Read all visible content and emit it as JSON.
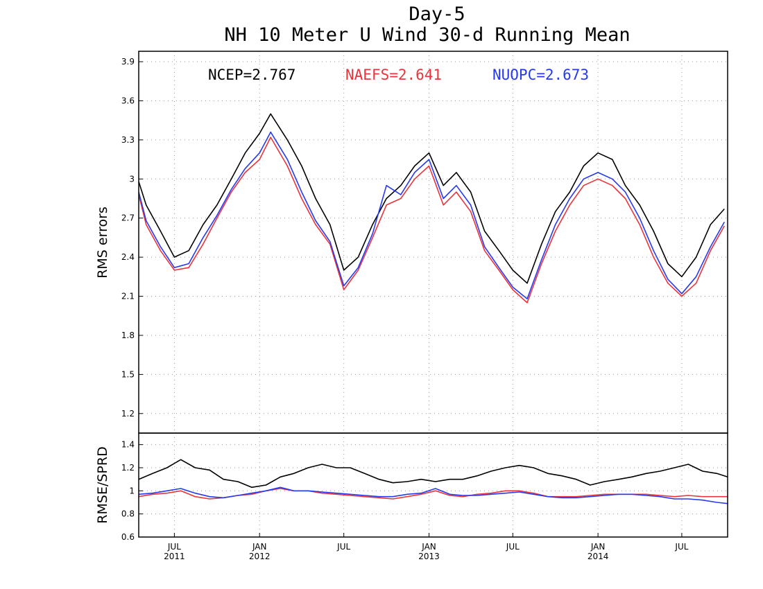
{
  "chart_data": [
    {
      "type": "line",
      "title_line1": "Day-5",
      "title_line2": "NH 10 Meter U Wind 30-d Running Mean",
      "ylabel": "RMS errors",
      "ylim": [
        1.05,
        3.98
      ],
      "yticks": [
        1.2,
        1.5,
        1.8,
        2.1,
        2.4,
        2.7,
        3.0,
        3.3,
        3.6,
        3.9
      ],
      "ytick_labels": [
        "1.2",
        "1.5",
        "1.8",
        "2.1",
        "2.4",
        "2.7",
        "3",
        "3.3",
        "3.6",
        "3.9"
      ],
      "grid": true,
      "legend": [
        {
          "text": "NCEP=2.767",
          "color": "#000000"
        },
        {
          "text": "NAEFS=2.641",
          "color": "#e8343a"
        },
        {
          "text": "NUOPC=2.673",
          "color": "#2639f0"
        }
      ],
      "x": [
        "2011-04-15",
        "2011-05-01",
        "2011-06-01",
        "2011-07-01",
        "2011-08-01",
        "2011-09-01",
        "2011-10-01",
        "2011-11-01",
        "2011-12-01",
        "2012-01-01",
        "2012-01-25",
        "2012-03-01",
        "2012-04-01",
        "2012-05-01",
        "2012-06-01",
        "2012-07-01",
        "2012-08-01",
        "2012-09-01",
        "2012-10-01",
        "2012-11-01",
        "2012-12-01",
        "2013-01-01",
        "2013-02-01",
        "2013-03-01",
        "2013-04-01",
        "2013-05-01",
        "2013-06-01",
        "2013-07-01",
        "2013-08-01",
        "2013-09-01",
        "2013-10-01",
        "2013-11-01",
        "2013-12-01",
        "2014-01-01",
        "2014-02-01",
        "2014-03-01",
        "2014-04-01",
        "2014-05-01",
        "2014-06-01",
        "2014-07-01",
        "2014-08-01",
        "2014-09-01",
        "2014-10-01"
      ],
      "series": [
        {
          "name": "NCEP",
          "color": "#000000",
          "values": [
            2.98,
            2.8,
            2.6,
            2.4,
            2.45,
            2.65,
            2.8,
            3.0,
            3.2,
            3.35,
            3.5,
            3.3,
            3.1,
            2.85,
            2.65,
            2.3,
            2.4,
            2.65,
            2.85,
            2.95,
            3.1,
            3.2,
            2.95,
            3.05,
            2.9,
            2.6,
            2.45,
            2.3,
            2.2,
            2.5,
            2.75,
            2.9,
            3.1,
            3.2,
            3.15,
            2.95,
            2.8,
            2.6,
            2.35,
            2.25,
            2.4,
            2.65,
            2.77
          ]
        },
        {
          "name": "NAEFS",
          "color": "#e8343a",
          "values": [
            2.88,
            2.65,
            2.45,
            2.3,
            2.32,
            2.5,
            2.7,
            2.9,
            3.05,
            3.15,
            3.32,
            3.1,
            2.85,
            2.65,
            2.5,
            2.15,
            2.3,
            2.55,
            2.8,
            2.85,
            3.0,
            3.1,
            2.8,
            2.9,
            2.75,
            2.45,
            2.3,
            2.15,
            2.05,
            2.35,
            2.6,
            2.8,
            2.95,
            3.0,
            2.95,
            2.85,
            2.65,
            2.4,
            2.2,
            2.1,
            2.2,
            2.45,
            2.64
          ]
        },
        {
          "name": "NUOPC",
          "color": "#2639f0",
          "values": [
            2.9,
            2.68,
            2.48,
            2.32,
            2.35,
            2.55,
            2.72,
            2.92,
            3.08,
            3.2,
            3.36,
            3.15,
            2.9,
            2.68,
            2.52,
            2.18,
            2.32,
            2.58,
            2.95,
            2.88,
            3.05,
            3.15,
            2.85,
            2.95,
            2.8,
            2.48,
            2.32,
            2.17,
            2.08,
            2.38,
            2.65,
            2.85,
            3.0,
            3.05,
            3.0,
            2.9,
            2.7,
            2.45,
            2.23,
            2.12,
            2.25,
            2.48,
            2.67
          ]
        }
      ]
    },
    {
      "type": "line",
      "ylabel": "RMSE/SPRD",
      "ylim": [
        0.6,
        1.5
      ],
      "yticks": [
        0.6,
        0.8,
        1.0,
        1.2,
        1.4
      ],
      "ytick_labels": [
        "0.6",
        "0.8",
        "1",
        "1.2",
        "1.4"
      ],
      "grid": true,
      "xtick_positions": [
        "2011-07-01",
        "2012-01-01",
        "2012-07-01",
        "2013-01-01",
        "2013-07-01",
        "2014-01-01",
        "2014-07-01"
      ],
      "xtick_labels": [
        "JUL\n2011",
        "JAN\n2012",
        "JUL",
        "JAN\n2013",
        "JUL",
        "JAN\n2014",
        "JUL"
      ],
      "xlim": [
        "2011-04-15",
        "2014-10-08"
      ],
      "x": [
        "2011-04-15",
        "2011-05-15",
        "2011-06-15",
        "2011-07-15",
        "2011-08-15",
        "2011-09-15",
        "2011-10-15",
        "2011-11-15",
        "2011-12-15",
        "2012-01-15",
        "2012-02-15",
        "2012-03-15",
        "2012-04-15",
        "2012-05-15",
        "2012-06-15",
        "2012-07-15",
        "2012-08-15",
        "2012-09-15",
        "2012-10-15",
        "2012-11-15",
        "2012-12-15",
        "2013-01-15",
        "2013-02-15",
        "2013-03-15",
        "2013-04-15",
        "2013-05-15",
        "2013-06-15",
        "2013-07-15",
        "2013-08-15",
        "2013-09-15",
        "2013-10-15",
        "2013-11-15",
        "2013-12-15",
        "2014-01-15",
        "2014-02-15",
        "2014-03-15",
        "2014-04-15",
        "2014-05-15",
        "2014-06-15",
        "2014-07-15",
        "2014-08-15",
        "2014-09-15",
        "2014-10-08"
      ],
      "series": [
        {
          "name": "NCEP",
          "color": "#000000",
          "values": [
            1.1,
            1.15,
            1.2,
            1.27,
            1.2,
            1.18,
            1.1,
            1.08,
            1.03,
            1.05,
            1.12,
            1.15,
            1.2,
            1.23,
            1.2,
            1.2,
            1.15,
            1.1,
            1.07,
            1.08,
            1.1,
            1.08,
            1.1,
            1.1,
            1.13,
            1.17,
            1.2,
            1.22,
            1.2,
            1.15,
            1.13,
            1.1,
            1.05,
            1.08,
            1.1,
            1.12,
            1.15,
            1.17,
            1.2,
            1.23,
            1.17,
            1.15,
            1.12
          ]
        },
        {
          "name": "NAEFS",
          "color": "#e8343a",
          "values": [
            0.95,
            0.97,
            0.98,
            1.0,
            0.95,
            0.93,
            0.94,
            0.96,
            0.97,
            1.0,
            1.02,
            1.0,
            1.0,
            0.98,
            0.97,
            0.96,
            0.95,
            0.94,
            0.93,
            0.95,
            0.97,
            1.0,
            0.96,
            0.95,
            0.97,
            0.98,
            1.0,
            1.0,
            0.98,
            0.95,
            0.95,
            0.95,
            0.96,
            0.97,
            0.97,
            0.97,
            0.97,
            0.96,
            0.95,
            0.96,
            0.95,
            0.95,
            0.95
          ]
        },
        {
          "name": "NUOPC",
          "color": "#2639f0",
          "values": [
            0.97,
            0.98,
            1.0,
            1.02,
            0.98,
            0.95,
            0.94,
            0.96,
            0.98,
            1.0,
            1.03,
            1.0,
            1.0,
            0.99,
            0.98,
            0.97,
            0.96,
            0.95,
            0.95,
            0.97,
            0.98,
            1.02,
            0.97,
            0.96,
            0.96,
            0.97,
            0.98,
            0.99,
            0.97,
            0.95,
            0.94,
            0.94,
            0.95,
            0.96,
            0.97,
            0.97,
            0.96,
            0.95,
            0.93,
            0.93,
            0.92,
            0.9,
            0.89
          ]
        }
      ]
    }
  ]
}
